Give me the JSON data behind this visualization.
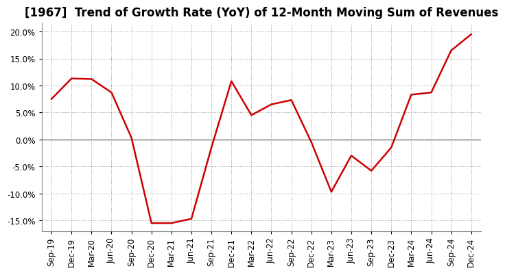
{
  "title": "[1967]  Trend of Growth Rate (YoY) of 12-Month Moving Sum of Revenues",
  "x_labels": [
    "Sep-19",
    "Dec-19",
    "Mar-20",
    "Jun-20",
    "Sep-20",
    "Dec-20",
    "Mar-21",
    "Jun-21",
    "Sep-21",
    "Dec-21",
    "Mar-22",
    "Jun-22",
    "Sep-22",
    "Dec-22",
    "Mar-23",
    "Jun-23",
    "Sep-23",
    "Dec-23",
    "Mar-24",
    "Jun-24",
    "Sep-24",
    "Dec-24"
  ],
  "y_values": [
    7.5,
    11.3,
    11.2,
    8.7,
    0.3,
    -15.5,
    -15.5,
    -14.7,
    -1.5,
    10.8,
    4.5,
    6.5,
    7.3,
    -0.5,
    -9.7,
    -3.0,
    -5.8,
    -1.5,
    8.3,
    8.7,
    16.5,
    19.5
  ],
  "line_color": "#cc0000",
  "line_width": 1.8,
  "ylim": [
    -17.0,
    21.5
  ],
  "yticks": [
    -15.0,
    -10.0,
    -5.0,
    0.0,
    5.0,
    10.0,
    15.0,
    20.0
  ],
  "background_color": "#ffffff",
  "plot_bg_color": "#ffffff",
  "grid_color": "#999999",
  "title_fontsize": 12,
  "tick_fontsize": 8.5
}
